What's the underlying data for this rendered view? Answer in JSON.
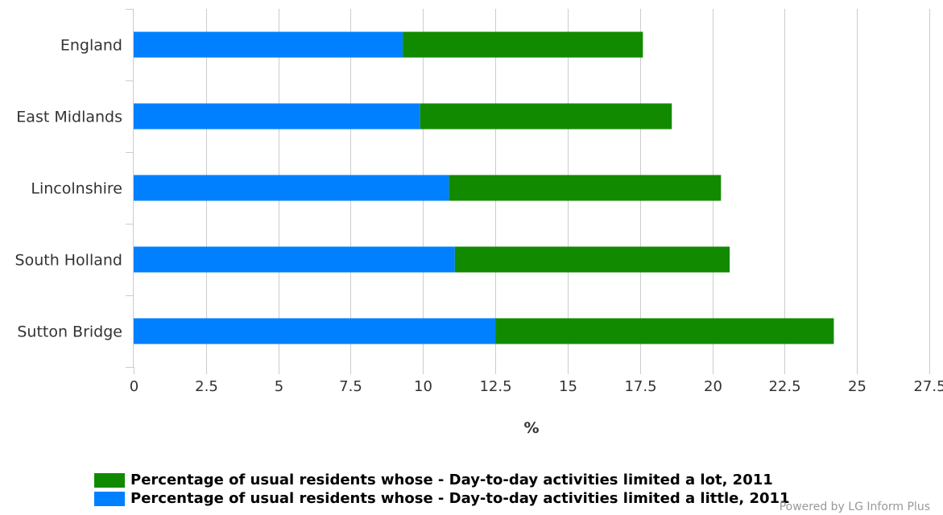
{
  "chart_data": {
    "type": "bar",
    "orientation": "horizontal",
    "stacked": true,
    "categories": [
      "England",
      "East Midlands",
      "Lincolnshire",
      "South Holland",
      "Sutton Bridge"
    ],
    "series": [
      {
        "name": "Percentage of usual residents whose - Day-to-day activities limited a little, 2011",
        "color": "#0080ff",
        "values": [
          9.3,
          9.9,
          10.9,
          11.1,
          12.5
        ]
      },
      {
        "name": "Percentage of usual residents whose - Day-to-day activities limited a lot, 2011",
        "color": "#128a00",
        "values": [
          8.3,
          8.7,
          9.4,
          9.5,
          11.7
        ]
      }
    ],
    "xlabel": "%",
    "xlim": [
      0,
      27.5
    ],
    "xticks": [
      "0",
      "2.5",
      "5",
      "7.5",
      "10",
      "12.5",
      "15",
      "17.5",
      "20",
      "22.5",
      "25",
      "27.5"
    ],
    "grid": true,
    "legend_position": "bottom"
  },
  "legend": {
    "items": [
      {
        "label": "Percentage of usual residents whose - Day-to-day activities limited a lot, 2011",
        "color": "#128a00"
      },
      {
        "label": "Percentage of usual residents whose - Day-to-day activities limited a little, 2011",
        "color": "#0080ff"
      }
    ]
  },
  "credit": "Powered by LG Inform Plus"
}
